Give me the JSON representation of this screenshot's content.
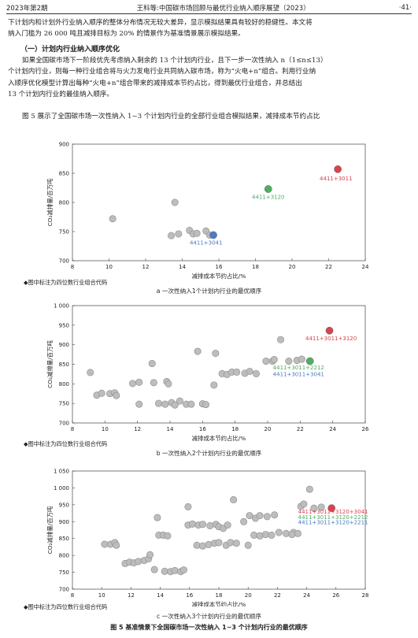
{
  "header": {
    "left": "2023年第2期",
    "center": "王科等:中国碳市场回顾与最优行业纳入顺序展望（2023）",
    "right": "·41·"
  },
  "paragraphs": {
    "p1_l1": "下计划内和计划外行业纳入顺序的整体分布情况无较大差异，显示模拟结果具有较好的稳健性。本文将",
    "p1_l2": "纳入门槛为 26 000 吨且减排目标为 20% 的情景作为基准情景展示模拟结果。",
    "subhead": "（一）计划内行业纳入顺序优化",
    "p2_l1": "如果全国碳市场下一阶段优先考虑纳入剩余的 13 个计划内行业，且下一步一次性纳入 n（1≤n≤13）",
    "p2_l2": "个计划内行业，则每一种行业组合将与火力发电行业共同纳入碳市场，称为“火电+n”组合。利用行业纳",
    "p2_l3": "入顺序优化模型计算出每种“火电+n”组合带来的减排成本节约占比，得到最优行业组合，并总结出",
    "p2_l4": "13 个计划内行业的最佳纳入顺序。",
    "p3_l1": "图 5 展示了全国碳市场一次性纳入 1~3 个计划内行业的全部行业组合模拟结果，减排成本节约占比"
  },
  "figure": {
    "caption": "图 5 基准情景下全国碳市场一次性纳入 1~3 个计划内行业的最优顺序",
    "colors": {
      "point": "#bdbdbd",
      "red": "#d9434d",
      "green": "#4fae62",
      "blue": "#4a7bc4"
    },
    "note": "◆图中标注为四位数行业组合代码"
  },
  "chart_data": [
    {
      "type": "scatter",
      "subcaption": "a 一次性纳入1个计划内行业的最优顺序",
      "xlabel": "减排成本节约占比/%",
      "ylabel": "CO₂减排量/百万吨",
      "xlim": [
        8,
        24
      ],
      "ylim": [
        700,
        900
      ],
      "xticks": [
        8,
        10,
        12,
        14,
        16,
        18,
        20,
        22,
        24
      ],
      "yticks": [
        700,
        750,
        800,
        850,
        900
      ],
      "points": [
        [
          10.2,
          772
        ],
        [
          13.6,
          800
        ],
        [
          13.4,
          743
        ],
        [
          13.8,
          746
        ],
        [
          14.4,
          752
        ],
        [
          14.6,
          746
        ],
        [
          14.8,
          747
        ],
        [
          15.3,
          751
        ],
        [
          15.5,
          744
        ]
      ],
      "highlights": [
        {
          "x": 22.5,
          "y": 857,
          "color": "red",
          "label": "4411+3011",
          "lx": 22.4,
          "ly": 838
        },
        {
          "x": 18.7,
          "y": 823,
          "color": "green",
          "label": "4411+3120",
          "lx": 18.7,
          "ly": 806
        },
        {
          "x": 15.7,
          "y": 744,
          "color": "blue",
          "label": "4411+3041",
          "lx": 15.3,
          "ly": 728
        }
      ]
    },
    {
      "type": "scatter",
      "subcaption": "b 一次性纳入2个计划内行业的最优顺序",
      "xlabel": "减排成本节约占比/%",
      "ylabel": "CO₂减排量/百万吨",
      "xlim": [
        8,
        26
      ],
      "ylim": [
        700,
        1000
      ],
      "xticks": [
        8,
        10,
        12,
        14,
        16,
        18,
        20,
        22,
        24,
        26
      ],
      "yticks": [
        700,
        750,
        800,
        850,
        900,
        950,
        1000
      ],
      "ytick_labels": [
        "700",
        "750",
        "800",
        "850",
        "900",
        "950",
        "1 000"
      ],
      "points": [
        [
          9.1,
          829
        ],
        [
          9.5,
          771
        ],
        [
          9.8,
          776
        ],
        [
          10.3,
          775
        ],
        [
          10.6,
          777
        ],
        [
          10.7,
          770
        ],
        [
          11.7,
          801
        ],
        [
          12.1,
          804
        ],
        [
          12.1,
          748
        ],
        [
          12.9,
          852
        ],
        [
          13.0,
          803
        ],
        [
          13.3,
          750
        ],
        [
          13.7,
          748
        ],
        [
          13.8,
          806
        ],
        [
          13.9,
          800
        ],
        [
          14.1,
          752
        ],
        [
          14.3,
          746
        ],
        [
          14.6,
          756
        ],
        [
          15.0,
          748
        ],
        [
          15.3,
          748
        ],
        [
          15.7,
          883
        ],
        [
          16.0,
          749
        ],
        [
          16.2,
          747
        ],
        [
          16.7,
          797
        ],
        [
          16.8,
          878
        ],
        [
          17.2,
          826
        ],
        [
          17.5,
          824
        ],
        [
          17.8,
          830
        ],
        [
          18.1,
          830
        ],
        [
          18.6,
          827
        ],
        [
          18.9,
          832
        ],
        [
          19.3,
          826
        ],
        [
          19.9,
          858
        ],
        [
          20.3,
          858
        ],
        [
          20.4,
          862
        ],
        [
          20.8,
          913
        ],
        [
          21.3,
          858
        ],
        [
          21.8,
          860
        ],
        [
          22.1,
          863
        ]
      ],
      "highlights": [
        {
          "x": 23.8,
          "y": 936,
          "color": "red",
          "label": "4411+3011+3120",
          "lx": 23.9,
          "ly": 911
        },
        {
          "x": 22.6,
          "y": 858,
          "color": "green",
          "label": "4411+3011+2212",
          "lx": 21.9,
          "ly": 837
        },
        {
          "x": null,
          "y": null,
          "color": "blue",
          "label": "4411+3011+3041",
          "lx": 21.9,
          "ly": 820
        }
      ]
    },
    {
      "type": "scatter",
      "subcaption": "c 一次性纳入3个计划内行业的最优顺序",
      "xlabel": "减排成本节约占比/%",
      "ylabel": "CO₂减排量/百万吨",
      "xlim": [
        8,
        28
      ],
      "ylim": [
        700,
        1050
      ],
      "xticks": [
        8,
        10,
        12,
        14,
        16,
        18,
        20,
        22,
        24,
        26,
        28
      ],
      "yticks": [
        700,
        750,
        800,
        850,
        900,
        950,
        1000,
        1050
      ],
      "ytick_labels": [
        "700",
        "750",
        "800",
        "850",
        "900",
        "950",
        "1 000",
        "1 050"
      ],
      "points": [
        [
          10.2,
          833
        ],
        [
          10.6,
          833
        ],
        [
          10.9,
          838
        ],
        [
          11.0,
          830
        ],
        [
          11.6,
          776
        ],
        [
          11.9,
          780
        ],
        [
          12.2,
          778
        ],
        [
          12.5,
          782
        ],
        [
          12.9,
          785
        ],
        [
          13.2,
          790
        ],
        [
          13.3,
          802
        ],
        [
          13.6,
          758
        ],
        [
          13.8,
          912
        ],
        [
          13.9,
          860
        ],
        [
          14.2,
          860
        ],
        [
          14.5,
          858
        ],
        [
          14.3,
          753
        ],
        [
          14.7,
          752
        ],
        [
          15.0,
          755
        ],
        [
          15.4,
          752
        ],
        [
          15.6,
          757
        ],
        [
          15.9,
          944
        ],
        [
          15.9,
          890
        ],
        [
          16.2,
          893
        ],
        [
          16.6,
          890
        ],
        [
          16.9,
          892
        ],
        [
          17.4,
          888
        ],
        [
          17.8,
          892
        ],
        [
          18.0,
          885
        ],
        [
          18.3,
          880
        ],
        [
          18.6,
          890
        ],
        [
          16.5,
          830
        ],
        [
          16.9,
          828
        ],
        [
          17.3,
          832
        ],
        [
          17.7,
          836
        ],
        [
          18.0,
          838
        ],
        [
          18.5,
          830
        ],
        [
          18.8,
          838
        ],
        [
          19.2,
          836
        ],
        [
          19.0,
          965
        ],
        [
          19.7,
          900
        ],
        [
          20.1,
          918
        ],
        [
          20.5,
          910
        ],
        [
          20.8,
          918
        ],
        [
          21.3,
          915
        ],
        [
          21.8,
          920
        ],
        [
          20.0,
          830
        ],
        [
          20.4,
          860
        ],
        [
          20.8,
          858
        ],
        [
          21.2,
          862
        ],
        [
          21.6,
          860
        ],
        [
          22.1,
          868
        ],
        [
          22.6,
          865
        ],
        [
          23.1,
          868
        ],
        [
          23.6,
          945
        ],
        [
          23.8,
          952
        ],
        [
          24.2,
          996
        ],
        [
          24.5,
          940
        ],
        [
          25.0,
          943
        ],
        [
          23.0,
          862
        ],
        [
          23.4,
          865
        ]
      ],
      "highlights": [
        {
          "x": 25.7,
          "y": 940,
          "color": "red",
          "label": "4411+3011+3120+3041",
          "lx": 25.8,
          "ly": 924
        },
        {
          "x": null,
          "y": null,
          "color": "green",
          "label": "4411+3011+3120+2212",
          "lx": 25.8,
          "ly": 908
        },
        {
          "x": null,
          "y": null,
          "color": "blue",
          "label": "4411+3011+3120+2211",
          "lx": 25.8,
          "ly": 893
        }
      ]
    }
  ]
}
